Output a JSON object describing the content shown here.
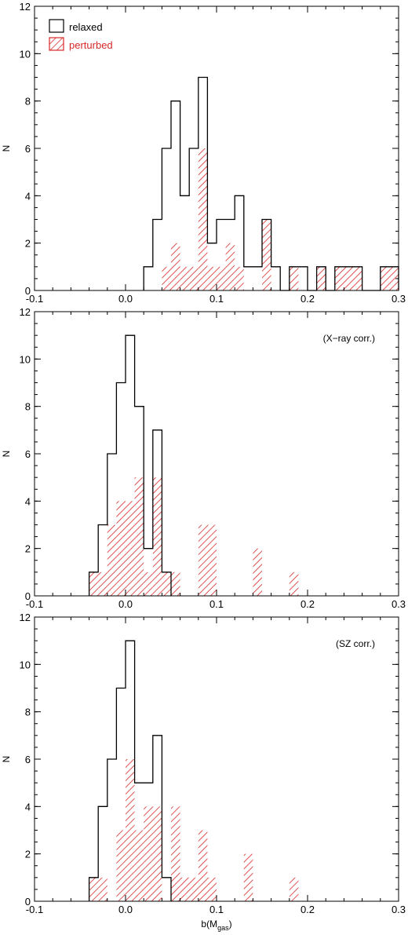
{
  "chart_data": [
    {
      "type": "histogram",
      "xlim": [
        -0.1,
        0.3
      ],
      "ylim": [
        0,
        12
      ],
      "x_ticks": [
        "-0.1",
        "0.0",
        "0.1",
        "0.2",
        "0.3"
      ],
      "y_ticks": [
        "0",
        "2",
        "4",
        "6",
        "8",
        "10",
        "12"
      ],
      "ylabel": "N",
      "xlabel": "",
      "annotation": "",
      "legend": {
        "position": "top-left",
        "entries": [
          {
            "label": "relaxed",
            "color": "#000000",
            "style": "outline"
          },
          {
            "label": "perturbed",
            "color": "#d62728",
            "style": "hatched"
          }
        ]
      },
      "series": [
        {
          "name": "relaxed",
          "color": "#000000",
          "style": "outline",
          "bins": [
            [
              0.02,
              0.03,
              1
            ],
            [
              0.03,
              0.04,
              3
            ],
            [
              0.04,
              0.05,
              6
            ],
            [
              0.05,
              0.06,
              8
            ],
            [
              0.06,
              0.07,
              4
            ],
            [
              0.07,
              0.08,
              6
            ],
            [
              0.08,
              0.09,
              9
            ],
            [
              0.09,
              0.1,
              2
            ],
            [
              0.1,
              0.12,
              3
            ],
            [
              0.12,
              0.13,
              4
            ],
            [
              0.13,
              0.15,
              1
            ],
            [
              0.15,
              0.16,
              3
            ],
            [
              0.16,
              0.17,
              1
            ],
            [
              0.17,
              0.18,
              0
            ],
            [
              0.18,
              0.19,
              1
            ],
            [
              0.19,
              0.2,
              1
            ],
            [
              0.2,
              0.21,
              0
            ],
            [
              0.21,
              0.22,
              1
            ],
            [
              0.22,
              0.23,
              0
            ],
            [
              0.23,
              0.26,
              1
            ],
            [
              0.26,
              0.28,
              0
            ],
            [
              0.28,
              0.3,
              1
            ]
          ]
        },
        {
          "name": "perturbed",
          "color": "#d62728",
          "style": "hatched",
          "bins": [
            [
              0.04,
              0.05,
              1
            ],
            [
              0.05,
              0.06,
              2
            ],
            [
              0.06,
              0.07,
              1
            ],
            [
              0.07,
              0.08,
              1
            ],
            [
              0.08,
              0.09,
              6
            ],
            [
              0.09,
              0.1,
              1
            ],
            [
              0.1,
              0.11,
              1
            ],
            [
              0.11,
              0.12,
              2
            ],
            [
              0.12,
              0.13,
              1
            ],
            [
              0.13,
              0.15,
              0
            ],
            [
              0.15,
              0.16,
              3
            ],
            [
              0.16,
              0.17,
              0
            ],
            [
              0.17,
              0.18,
              0
            ],
            [
              0.18,
              0.19,
              1
            ],
            [
              0.19,
              0.2,
              0
            ],
            [
              0.21,
              0.22,
              1
            ],
            [
              0.23,
              0.26,
              1
            ],
            [
              0.28,
              0.3,
              1
            ]
          ]
        }
      ]
    },
    {
      "type": "histogram",
      "xlim": [
        -0.1,
        0.3
      ],
      "ylim": [
        0,
        12
      ],
      "x_ticks": [
        "-0.1",
        "0.0",
        "0.1",
        "0.2",
        "0.3"
      ],
      "y_ticks": [
        "0",
        "2",
        "4",
        "6",
        "8",
        "10",
        "12"
      ],
      "ylabel": "N",
      "xlabel": "",
      "annotation": "(X−ray corr.)",
      "series": [
        {
          "name": "relaxed",
          "color": "#000000",
          "style": "outline",
          "bins": [
            [
              -0.04,
              -0.03,
              1
            ],
            [
              -0.03,
              -0.02,
              3
            ],
            [
              -0.02,
              -0.01,
              6
            ],
            [
              -0.01,
              0.0,
              9
            ],
            [
              0.0,
              0.01,
              11
            ],
            [
              0.01,
              0.02,
              8
            ],
            [
              0.02,
              0.03,
              2
            ],
            [
              0.03,
              0.04,
              7
            ],
            [
              0.04,
              0.05,
              1
            ]
          ]
        },
        {
          "name": "perturbed",
          "color": "#d62728",
          "style": "hatched",
          "bins": [
            [
              -0.04,
              -0.03,
              1
            ],
            [
              -0.03,
              -0.02,
              1
            ],
            [
              -0.02,
              -0.01,
              3
            ],
            [
              -0.01,
              0.0,
              4
            ],
            [
              0.0,
              0.01,
              4
            ],
            [
              0.01,
              0.02,
              5
            ],
            [
              0.02,
              0.03,
              1
            ],
            [
              0.03,
              0.04,
              5
            ],
            [
              0.04,
              0.05,
              1
            ],
            [
              0.05,
              0.06,
              1
            ],
            [
              0.08,
              0.1,
              3
            ],
            [
              0.14,
              0.15,
              2
            ],
            [
              0.18,
              0.19,
              1
            ]
          ]
        }
      ]
    },
    {
      "type": "histogram",
      "xlim": [
        -0.1,
        0.3
      ],
      "ylim": [
        0,
        12
      ],
      "x_ticks": [
        "-0.1",
        "0.0",
        "0.1",
        "0.2",
        "0.3"
      ],
      "y_ticks": [
        "0",
        "2",
        "4",
        "6",
        "8",
        "10",
        "12"
      ],
      "ylabel": "N",
      "xlabel": "b(M",
      "xlabel_sub": "gas",
      "xlabel_end": ")",
      "annotation": "(SZ corr.)",
      "series": [
        {
          "name": "relaxed",
          "color": "#000000",
          "style": "outline",
          "bins": [
            [
              -0.04,
              -0.03,
              1
            ],
            [
              -0.03,
              -0.02,
              4
            ],
            [
              -0.02,
              -0.01,
              6
            ],
            [
              -0.01,
              0.0,
              9
            ],
            [
              0.0,
              0.01,
              11
            ],
            [
              0.01,
              0.03,
              5
            ],
            [
              0.03,
              0.04,
              7
            ],
            [
              0.04,
              0.05,
              1
            ]
          ]
        },
        {
          "name": "perturbed",
          "color": "#d62728",
          "style": "hatched",
          "bins": [
            [
              -0.04,
              -0.03,
              1
            ],
            [
              -0.03,
              -0.02,
              1
            ],
            [
              -0.02,
              -0.01,
              0
            ],
            [
              -0.01,
              0.0,
              3
            ],
            [
              0.0,
              0.01,
              6
            ],
            [
              0.01,
              0.02,
              3
            ],
            [
              0.02,
              0.04,
              4
            ],
            [
              0.05,
              0.06,
              4
            ],
            [
              0.06,
              0.08,
              1
            ],
            [
              0.08,
              0.09,
              3
            ],
            [
              0.09,
              0.1,
              1
            ],
            [
              0.13,
              0.14,
              2
            ],
            [
              0.18,
              0.19,
              1
            ]
          ]
        }
      ]
    }
  ]
}
